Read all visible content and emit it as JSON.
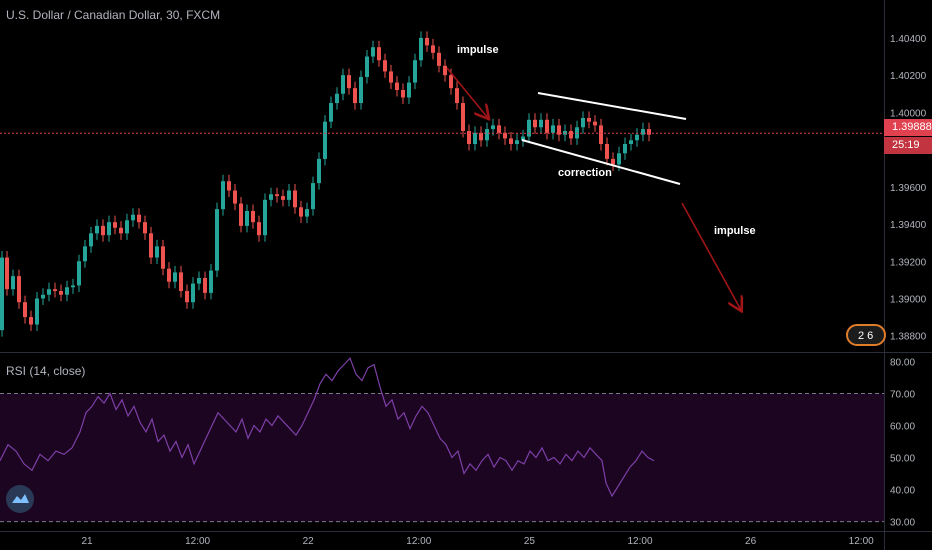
{
  "header": {
    "title": "U.S. Dollar / Canadian Dollar, 30, FXCM"
  },
  "price_badge": "1.39888",
  "countdown_badge": "25:19",
  "news_badge": "2 6",
  "indicator": {
    "label": "RSI (14, close)"
  },
  "colors": {
    "up": "#26a69a",
    "down": "#ef5350",
    "rsi": "#7e3fa8",
    "rsi_band": "#1b0520",
    "price_line": "#e0414f",
    "arrow": "#a01518"
  },
  "chart_data": [
    {
      "type": "candlestick",
      "title": "U.S. Dollar / Canadian Dollar, 30, FXCM",
      "ylim": [
        1.3875,
        1.4055
      ],
      "y_ticks": [
        "1.40400",
        "1.40200",
        "1.40000",
        "1.39600",
        "1.39400",
        "1.39200",
        "1.39000",
        "1.38800"
      ],
      "x_ticks": [
        "21",
        "12:00",
        "22",
        "12:00",
        "25",
        "12:00",
        "26",
        "12:00"
      ],
      "last_price": 1.39888,
      "price_path": [
        [
          0,
          1.3883
        ],
        [
          4,
          1.3922
        ],
        [
          10,
          1.3905
        ],
        [
          16,
          1.3912
        ],
        [
          22,
          1.3898
        ],
        [
          28,
          1.389
        ],
        [
          34,
          1.3886
        ],
        [
          40,
          1.39
        ],
        [
          46,
          1.3902
        ],
        [
          52,
          1.3905
        ],
        [
          58,
          1.3904
        ],
        [
          64,
          1.3902
        ],
        [
          70,
          1.3906
        ],
        [
          76,
          1.3907
        ],
        [
          82,
          1.392
        ],
        [
          88,
          1.3928
        ],
        [
          94,
          1.3935
        ],
        [
          100,
          1.3939
        ],
        [
          106,
          1.3934
        ],
        [
          112,
          1.3941
        ],
        [
          118,
          1.3938
        ],
        [
          124,
          1.3935
        ],
        [
          130,
          1.3942
        ],
        [
          136,
          1.3945
        ],
        [
          142,
          1.3941
        ],
        [
          148,
          1.3935
        ],
        [
          154,
          1.3922
        ],
        [
          160,
          1.3928
        ],
        [
          166,
          1.3916
        ],
        [
          172,
          1.3909
        ],
        [
          178,
          1.3914
        ],
        [
          184,
          1.3904
        ],
        [
          190,
          1.3898
        ],
        [
          196,
          1.3908
        ],
        [
          202,
          1.3911
        ],
        [
          208,
          1.3903
        ],
        [
          214,
          1.3915
        ],
        [
          220,
          1.3948
        ],
        [
          226,
          1.3963
        ],
        [
          232,
          1.3958
        ],
        [
          238,
          1.3951
        ],
        [
          244,
          1.3939
        ],
        [
          250,
          1.3947
        ],
        [
          256,
          1.3941
        ],
        [
          262,
          1.3934
        ],
        [
          268,
          1.3953
        ],
        [
          274,
          1.3956
        ],
        [
          280,
          1.3955
        ],
        [
          286,
          1.3953
        ],
        [
          292,
          1.3958
        ],
        [
          298,
          1.3949
        ],
        [
          304,
          1.3944
        ],
        [
          310,
          1.3948
        ],
        [
          316,
          1.3962
        ],
        [
          322,
          1.3975
        ],
        [
          328,
          1.3995
        ],
        [
          334,
          1.4005
        ],
        [
          340,
          1.401
        ],
        [
          346,
          1.402
        ],
        [
          352,
          1.4013
        ],
        [
          358,
          1.4005
        ],
        [
          364,
          1.4019
        ],
        [
          370,
          1.403
        ],
        [
          376,
          1.4035
        ],
        [
          382,
          1.4028
        ],
        [
          388,
          1.4022
        ],
        [
          394,
          1.4016
        ],
        [
          400,
          1.4012
        ],
        [
          406,
          1.4008
        ],
        [
          412,
          1.4016
        ],
        [
          418,
          1.4028
        ],
        [
          424,
          1.404
        ],
        [
          430,
          1.4036
        ],
        [
          436,
          1.4032
        ],
        [
          442,
          1.4025
        ],
        [
          448,
          1.402
        ],
        [
          454,
          1.4013
        ],
        [
          460,
          1.4005
        ],
        [
          466,
          1.399
        ],
        [
          472,
          1.3983
        ],
        [
          478,
          1.3989
        ],
        [
          484,
          1.3985
        ],
        [
          490,
          1.3991
        ],
        [
          496,
          1.3993
        ],
        [
          502,
          1.3989
        ],
        [
          508,
          1.3986
        ],
        [
          514,
          1.3983
        ],
        [
          520,
          1.3985
        ],
        [
          526,
          1.3987
        ],
        [
          532,
          1.3996
        ],
        [
          538,
          1.3992
        ],
        [
          544,
          1.3996
        ],
        [
          550,
          1.3989
        ],
        [
          556,
          1.3993
        ],
        [
          562,
          1.3988
        ],
        [
          568,
          1.399
        ],
        [
          574,
          1.3986
        ],
        [
          580,
          1.3992
        ],
        [
          586,
          1.3997
        ],
        [
          592,
          1.3995
        ],
        [
          598,
          1.3993
        ],
        [
          604,
          1.3983
        ],
        [
          610,
          1.3975
        ],
        [
          616,
          1.3972
        ],
        [
          622,
          1.3978
        ],
        [
          628,
          1.3983
        ],
        [
          634,
          1.3985
        ],
        [
          640,
          1.3988
        ],
        [
          646,
          1.3991
        ],
        [
          652,
          1.3988
        ]
      ]
    },
    {
      "type": "line",
      "title": "RSI (14, close)",
      "ylim": [
        28,
        82
      ],
      "y_ticks": [
        "80.00",
        "70.00",
        "60.00",
        "50.00",
        "40.00",
        "30.00"
      ],
      "levels": [
        70,
        30
      ],
      "values": [
        [
          0,
          49
        ],
        [
          8,
          54
        ],
        [
          16,
          52
        ],
        [
          24,
          48
        ],
        [
          32,
          46
        ],
        [
          40,
          51
        ],
        [
          48,
          49
        ],
        [
          56,
          52
        ],
        [
          64,
          51
        ],
        [
          72,
          53
        ],
        [
          80,
          58
        ],
        [
          86,
          64
        ],
        [
          92,
          66
        ],
        [
          98,
          69
        ],
        [
          104,
          67
        ],
        [
          110,
          70
        ],
        [
          116,
          65
        ],
        [
          122,
          68
        ],
        [
          128,
          63
        ],
        [
          134,
          66
        ],
        [
          140,
          61
        ],
        [
          146,
          58
        ],
        [
          152,
          62
        ],
        [
          158,
          55
        ],
        [
          164,
          57
        ],
        [
          170,
          52
        ],
        [
          176,
          55
        ],
        [
          182,
          50
        ],
        [
          188,
          54
        ],
        [
          194,
          48
        ],
        [
          200,
          52
        ],
        [
          206,
          56
        ],
        [
          212,
          60
        ],
        [
          218,
          64
        ],
        [
          224,
          62
        ],
        [
          230,
          60
        ],
        [
          236,
          58
        ],
        [
          242,
          62
        ],
        [
          248,
          56
        ],
        [
          254,
          60
        ],
        [
          260,
          58
        ],
        [
          266,
          62
        ],
        [
          272,
          60
        ],
        [
          278,
          63
        ],
        [
          284,
          61
        ],
        [
          290,
          59
        ],
        [
          296,
          57
        ],
        [
          302,
          60
        ],
        [
          308,
          64
        ],
        [
          314,
          68
        ],
        [
          320,
          73
        ],
        [
          326,
          76
        ],
        [
          332,
          74
        ],
        [
          338,
          77
        ],
        [
          344,
          79
        ],
        [
          350,
          81
        ],
        [
          356,
          76
        ],
        [
          362,
          74
        ],
        [
          368,
          78
        ],
        [
          374,
          79
        ],
        [
          380,
          72
        ],
        [
          386,
          66
        ],
        [
          392,
          68
        ],
        [
          398,
          62
        ],
        [
          404,
          64
        ],
        [
          410,
          59
        ],
        [
          416,
          63
        ],
        [
          422,
          66
        ],
        [
          428,
          64
        ],
        [
          434,
          60
        ],
        [
          440,
          56
        ],
        [
          446,
          54
        ],
        [
          452,
          50
        ],
        [
          458,
          52
        ],
        [
          464,
          45
        ],
        [
          470,
          48
        ],
        [
          476,
          46
        ],
        [
          482,
          49
        ],
        [
          488,
          51
        ],
        [
          494,
          47
        ],
        [
          500,
          50
        ],
        [
          506,
          49
        ],
        [
          512,
          46
        ],
        [
          518,
          49
        ],
        [
          524,
          48
        ],
        [
          530,
          52
        ],
        [
          536,
          50
        ],
        [
          542,
          53
        ],
        [
          548,
          49
        ],
        [
          554,
          50
        ],
        [
          560,
          48
        ],
        [
          566,
          51
        ],
        [
          572,
          49
        ],
        [
          578,
          52
        ],
        [
          584,
          50
        ],
        [
          590,
          53
        ],
        [
          596,
          51
        ],
        [
          602,
          49
        ],
        [
          606,
          42
        ],
        [
          612,
          38
        ],
        [
          618,
          41
        ],
        [
          624,
          44
        ],
        [
          630,
          47
        ],
        [
          636,
          49
        ],
        [
          642,
          52
        ],
        [
          648,
          50
        ],
        [
          654,
          49
        ]
      ]
    }
  ],
  "annotations": {
    "impulse_1": "impulse",
    "correction": "correction",
    "impulse_2": "impulse"
  }
}
